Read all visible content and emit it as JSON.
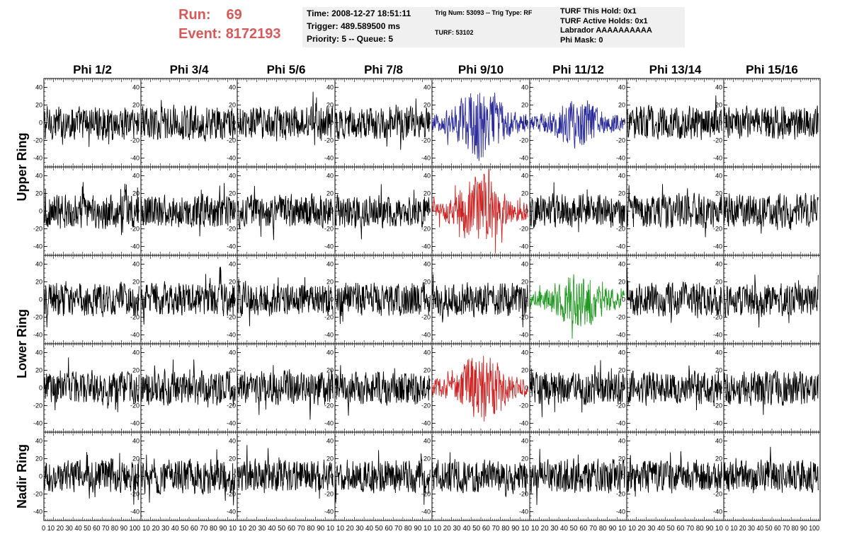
{
  "run_info": {
    "run_label": "Run:",
    "run_value": "69",
    "event_label": "Event:",
    "event_value": "8172193"
  },
  "time_box": {
    "line1": "Time: 2008-12-27 18:51:11",
    "line2": "Trigger: 489.589500 ms",
    "line3": "Priority: 5 -- Queue: 5"
  },
  "trig_box": {
    "line1": "Trig Num: 53093 -- Trig Type: RF",
    "line2": "TURF: 53102"
  },
  "turf_box": {
    "line1": "TURF This Hold: 0x1",
    "line2": "TURF Active Holds: 0x1",
    "line3": "Labrador AAAAAAAAAA",
    "line4": "Phi Mask: 0"
  },
  "colors": {
    "header_text": "#d55a5a",
    "panel_bg": "#f0f0f0",
    "trace_default": "#000000",
    "trace_blue": "#2a2a9a",
    "trace_red": "#cc2222",
    "trace_green": "#229922"
  },
  "chart_data": {
    "type": "line",
    "columns": [
      "Phi 1/2",
      "Phi 3/4",
      "Phi 5/6",
      "Phi 7/8",
      "Phi 9/10",
      "Phi 11/12",
      "Phi 13/14",
      "Phi 15/16"
    ],
    "ring_labels": [
      {
        "label": "Upper Ring",
        "rows": [
          0,
          1
        ]
      },
      {
        "label": "Lower Ring",
        "rows": [
          2,
          3
        ]
      },
      {
        "label": "Nadir Ring",
        "rows": [
          4
        ]
      }
    ],
    "rows": 5,
    "xlim": [
      0,
      100
    ],
    "x_span": [
      0,
      98
    ],
    "ylim": [
      -50,
      50
    ],
    "y_ticks": [
      -40,
      -20,
      0,
      20,
      40
    ],
    "x_ticks": [
      0,
      10,
      20,
      30,
      40,
      50,
      60,
      70,
      80,
      90,
      100
    ],
    "x_tick_label_string": "0 10 20 30 40 50 60 70 80 90 100",
    "x_tick_label_string_short": "10 20 30 40 50 60 70 80 90 10",
    "grid": false,
    "samples_per_trace": 256,
    "default_amplitude": 20,
    "highlighted": [
      {
        "row": 0,
        "col": 4,
        "color": "blue",
        "peak_amplitude": 45
      },
      {
        "row": 0,
        "col": 5,
        "color": "blue",
        "peak_amplitude": 30
      },
      {
        "row": 1,
        "col": 4,
        "color": "red",
        "peak_amplitude": 45
      },
      {
        "row": 2,
        "col": 5,
        "color": "green",
        "peak_amplitude": 35
      },
      {
        "row": 3,
        "col": 4,
        "color": "red",
        "peak_amplitude": 42
      }
    ]
  }
}
